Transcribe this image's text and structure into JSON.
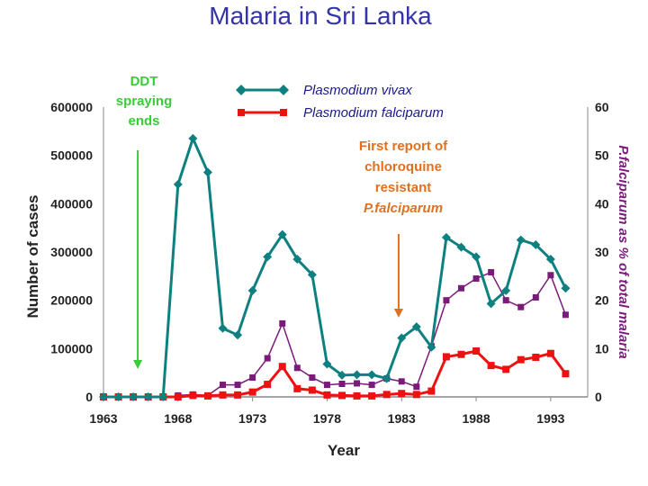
{
  "page_title": "Malaria in Sri Lanka",
  "chart_data": {
    "type": "line",
    "title": "Malaria in Sri Lanka",
    "xlabel": "Year",
    "ylabel": "Number of cases",
    "y2label": "P.falciparum  as % of total malaria",
    "xlim": [
      1963,
      1995
    ],
    "ylim": [
      0,
      600000
    ],
    "y2lim": [
      0,
      60
    ],
    "x_ticks": [
      "1963",
      "1968",
      "1973",
      "1978",
      "1983",
      "1988",
      "1993"
    ],
    "y_ticks": [
      "0",
      "100000",
      "200000",
      "300000",
      "400000",
      "500000",
      "600000"
    ],
    "y2_ticks": [
      "0",
      "10",
      "20",
      "30",
      "40",
      "50",
      "60"
    ],
    "years": [
      1963,
      1964,
      1965,
      1966,
      1967,
      1968,
      1969,
      1970,
      1971,
      1972,
      1973,
      1974,
      1975,
      1976,
      1977,
      1978,
      1979,
      1980,
      1981,
      1982,
      1983,
      1984,
      1985,
      1986,
      1987,
      1988,
      1989,
      1990,
      1991,
      1992,
      1993,
      1994,
      1995
    ],
    "series": [
      {
        "name": "Plasmodium vivax",
        "color": "#0e8080",
        "marker": "diamond",
        "axis": "left",
        "values": [
          0,
          0,
          0,
          0,
          0,
          440000,
          535000,
          465000,
          142000,
          128000,
          220000,
          290000,
          336000,
          285000,
          253000,
          68000,
          45000,
          46000,
          46000,
          38000,
          122000,
          145000,
          103000,
          330000,
          310000,
          290000,
          193000,
          220000,
          325000,
          315000,
          285000,
          225000,
          null
        ]
      },
      {
        "name": "Plasmodium falciparum",
        "color": "#ee1111",
        "marker": "square",
        "axis": "left",
        "values": [
          0,
          0,
          0,
          0,
          0,
          0,
          3000,
          2000,
          4000,
          4000,
          10000,
          26000,
          63000,
          17000,
          14000,
          4000,
          3000,
          2000,
          2000,
          5000,
          7000,
          5000,
          12000,
          83000,
          88000,
          95000,
          65000,
          57000,
          77000,
          82000,
          90000,
          48000,
          null
        ]
      },
      {
        "name": "P.falciparum as % of total malaria",
        "color": "#7a1a7a",
        "marker": "square",
        "axis": "right",
        "values": [
          null,
          null,
          null,
          null,
          null,
          0.3,
          0.5,
          0.3,
          2.5,
          2.5,
          4,
          8,
          15.2,
          6,
          4,
          2.5,
          2.7,
          2.8,
          2.5,
          3.8,
          3.2,
          2.1,
          10.5,
          20,
          22.5,
          24.5,
          25.8,
          20,
          18.6,
          20.6,
          25.2,
          17,
          null
        ]
      }
    ],
    "annotations": {
      "ddt_lines": [
        "DDT",
        "spraying",
        "ends"
      ],
      "ddt_year": 1965.3,
      "chloroquine_lines": [
        "First report of",
        "chloroquine",
        "resistant",
        "P.falciparum"
      ],
      "chloroquine_year": 1982.8
    },
    "legend": "top-center",
    "grid": false
  }
}
